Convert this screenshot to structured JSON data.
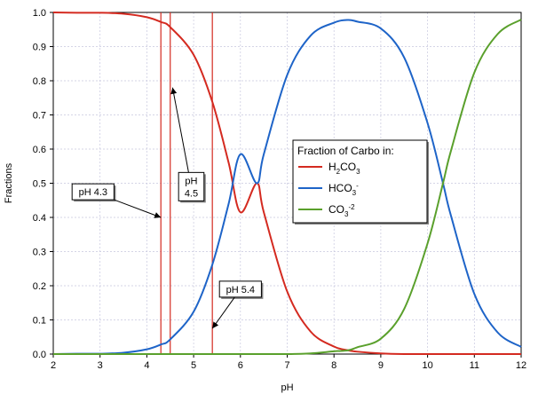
{
  "chart_data": {
    "type": "line",
    "xlabel": "pH",
    "ylabel": "Fractions",
    "xlim": [
      2,
      12
    ],
    "ylim": [
      0,
      1
    ],
    "xticks": [
      2,
      3,
      4,
      5,
      6,
      7,
      8,
      9,
      10,
      11,
      12
    ],
    "yticks": [
      0.0,
      0.1,
      0.2,
      0.3,
      0.4,
      0.5,
      0.6,
      0.7,
      0.8,
      0.9,
      1.0
    ],
    "ytick_labels": [
      "0.0",
      "0.1",
      "0.2",
      "0.3",
      "0.4",
      "0.5",
      "0.6",
      "0.7",
      "0.8",
      "0.9",
      "1.0"
    ],
    "grid": true,
    "legend": {
      "title": "Fraction of Carbo in:",
      "placement": "center-right",
      "entries": [
        {
          "main": "H",
          "sub1": "2",
          "mid": "CO",
          "sub2": "3",
          "sup": ""
        },
        {
          "main": "HCO",
          "sub1": "",
          "mid": "",
          "sub2": "3",
          "sup": "-"
        },
        {
          "main": "CO",
          "sub1": "",
          "mid": "",
          "sub2": "3",
          "sup": "-2"
        }
      ]
    },
    "x": [
      2.0,
      2.5,
      3.0,
      3.5,
      4.0,
      4.3,
      4.5,
      5.0,
      5.4,
      5.75,
      6.0,
      6.35,
      6.5,
      7.0,
      7.5,
      8.0,
      8.3,
      8.5,
      9.0,
      9.5,
      10.0,
      10.33,
      10.5,
      11.0,
      11.5,
      12.0
    ],
    "series": [
      {
        "name": "H2CO3",
        "color": "#d42a20",
        "values": [
          1.0,
          0.999,
          0.999,
          0.996,
          0.986,
          0.972,
          0.957,
          0.876,
          0.738,
          0.559,
          0.415,
          0.5,
          0.415,
          0.183,
          0.066,
          0.022,
          0.011,
          0.007,
          0.002,
          0.0,
          0.0,
          0.0,
          0.0,
          0.0,
          0.0,
          0.0
        ]
      },
      {
        "name": "HCO3-",
        "color": "#1e64c8",
        "values": [
          0.0,
          0.001,
          0.001,
          0.004,
          0.014,
          0.028,
          0.043,
          0.124,
          0.262,
          0.441,
          0.585,
          0.5,
          0.585,
          0.817,
          0.932,
          0.97,
          0.978,
          0.973,
          0.953,
          0.868,
          0.676,
          0.5,
          0.405,
          0.176,
          0.063,
          0.021
        ]
      },
      {
        "name": "CO3-2",
        "color": "#5aa02c",
        "values": [
          0.0,
          0.0,
          0.0,
          0.0,
          0.0,
          0.0,
          0.0,
          0.0,
          0.0,
          0.0,
          0.0,
          0.0,
          0.0,
          0.0,
          0.002,
          0.008,
          0.011,
          0.02,
          0.045,
          0.132,
          0.324,
          0.5,
          0.595,
          0.824,
          0.937,
          0.979
        ]
      }
    ],
    "vertical_lines": [
      {
        "x": 4.3,
        "color": "#d42a20"
      },
      {
        "x": 4.5,
        "color": "#d42a20"
      },
      {
        "x": 5.4,
        "color": "#d42a20"
      }
    ],
    "annotations": [
      {
        "lines": [
          "pH 4.3"
        ],
        "box_anchor": [
          2.85,
          0.475
        ],
        "arrow_to": [
          4.3,
          0.4
        ]
      },
      {
        "lines": [
          "pH",
          "4.5"
        ],
        "box_anchor": [
          4.95,
          0.49
        ],
        "arrow_to": [
          4.55,
          0.78
        ]
      },
      {
        "lines": [
          "pH 5.4"
        ],
        "box_anchor": [
          6.0,
          0.19
        ],
        "arrow_to": [
          5.4,
          0.075
        ]
      }
    ]
  }
}
